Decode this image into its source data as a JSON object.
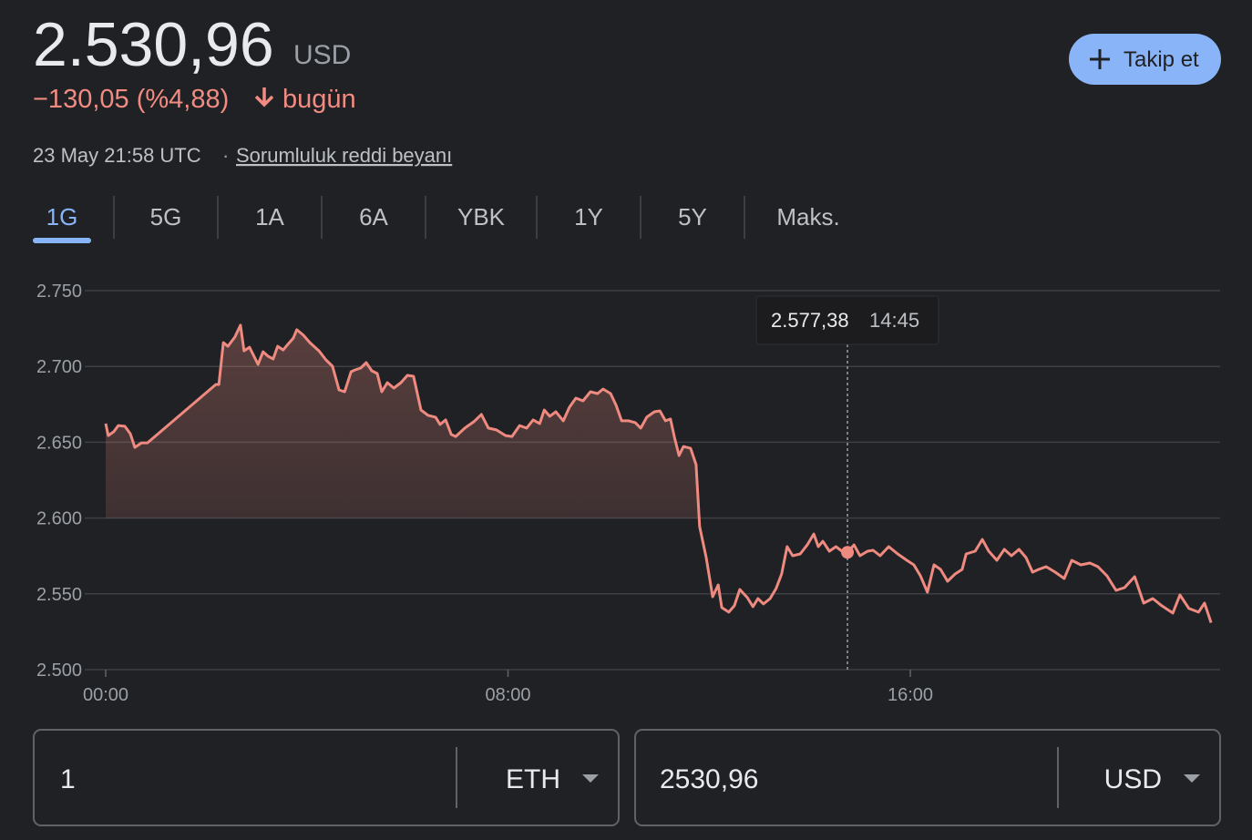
{
  "header": {
    "price": "2.530,96",
    "currency": "USD",
    "change": "−130,05 (%4,88)",
    "change_period": "bugün",
    "timestamp": "23 May 21:58 UTC",
    "separator": "·",
    "disclaimer": "Sorumluluk reddi beyanı",
    "follow_button": "Takip et"
  },
  "tabs": [
    "1G",
    "5G",
    "1A",
    "6A",
    "YBK",
    "1Y",
    "5Y",
    "Maks."
  ],
  "active_tab": 0,
  "chart_data": {
    "type": "line",
    "color": "#ee8a80",
    "grid": true,
    "xlim": [
      0,
      22.16
    ],
    "xticks": [
      {
        "value": 0,
        "label": "00:00"
      },
      {
        "value": 8,
        "label": "08:00"
      },
      {
        "value": 16,
        "label": "16:00"
      }
    ],
    "ylim": [
      2500,
      2750
    ],
    "yticks": [
      {
        "value": 2500,
        "label": "2.500"
      },
      {
        "value": 2550,
        "label": "2.550"
      },
      {
        "value": 2600,
        "label": "2.600"
      },
      {
        "value": 2650,
        "label": "2.650"
      },
      {
        "value": 2700,
        "label": "2.700"
      },
      {
        "value": 2750,
        "label": "2.750"
      }
    ],
    "x": [
      0,
      0.05,
      0.16,
      0.25,
      0.38,
      0.49,
      0.58,
      0.71,
      0.83,
      2.19,
      2.25,
      2.34,
      2.43,
      2.57,
      2.68,
      2.75,
      2.86,
      3.03,
      3.13,
      3.23,
      3.33,
      3.42,
      3.53,
      3.62,
      3.73,
      3.8,
      3.93,
      4.06,
      4.24,
      4.38,
      4.51,
      4.64,
      4.75,
      4.88,
      4.96,
      5.07,
      5.18,
      5.29,
      5.4,
      5.49,
      5.6,
      5.73,
      5.87,
      6,
      6.12,
      6.27,
      6.41,
      6.56,
      6.65,
      6.76,
      6.87,
      6.96,
      7.14,
      7.32,
      7.47,
      7.61,
      7.77,
      7.95,
      8.08,
      8.23,
      8.37,
      8.5,
      8.63,
      8.72,
      8.83,
      8.95,
      9.1,
      9.22,
      9.35,
      9.49,
      9.64,
      9.78,
      9.89,
      10.04,
      10.15,
      10.26,
      10.4,
      10.53,
      10.64,
      10.76,
      10.91,
      11.02,
      11.13,
      11.23,
      11.31,
      11.4,
      11.49,
      11.63,
      11.74,
      11.81,
      11.94,
      12.07,
      12.18,
      12.25,
      12.39,
      12.5,
      12.61,
      12.76,
      12.87,
      12.97,
      13.08,
      13.21,
      13.33,
      13.44,
      13.55,
      13.66,
      13.81,
      13.95,
      14.08,
      14.17,
      14.26,
      14.39,
      14.52,
      14.64,
      14.75,
      14.88,
      15,
      15.15,
      15.26,
      15.4,
      15.57,
      15.75,
      15.93,
      16.07,
      16.2,
      16.34,
      16.47,
      16.6,
      16.74,
      16.89,
      17.03,
      17.11,
      17.29,
      17.43,
      17.56,
      17.72,
      17.87,
      18.01,
      18.16,
      18.3,
      18.43,
      18.55,
      18.7,
      18.88,
      19.06,
      19.21,
      19.39,
      19.57,
      19.73,
      19.91,
      20.09,
      20.26,
      20.46,
      20.64,
      20.82,
      21,
      21.22,
      21.36,
      21.54,
      21.73,
      21.85,
      21.98
    ],
    "values": [
      2662.3,
      2654.4,
      2656.9,
      2661,
      2660.5,
      2655.6,
      2646.6,
      2649.6,
      2649.6,
      2688.1,
      2688.1,
      2715.7,
      2713.3,
      2719.4,
      2727.2,
      2710.3,
      2712.7,
      2701.3,
      2709.7,
      2706.7,
      2704.9,
      2713.3,
      2710.9,
      2714.5,
      2718.7,
      2724.2,
      2720.6,
      2715.7,
      2710.3,
      2704.3,
      2700.1,
      2684.5,
      2683.3,
      2696.5,
      2697.7,
      2698.9,
      2702.5,
      2697.1,
      2695.3,
      2683.3,
      2689.3,
      2685.7,
      2689.3,
      2694.1,
      2693.5,
      2671.3,
      2667.7,
      2666.5,
      2661.7,
      2664.7,
      2655.1,
      2653.8,
      2659.3,
      2663.5,
      2668.3,
      2659.3,
      2658.1,
      2654.4,
      2653.8,
      2661,
      2659.3,
      2664.7,
      2662.3,
      2671.3,
      2667.1,
      2670.1,
      2664.1,
      2673.1,
      2679.1,
      2677.3,
      2683.3,
      2682.1,
      2685.1,
      2682.1,
      2674.3,
      2664.1,
      2664.1,
      2662.9,
      2659.3,
      2666.5,
      2670.1,
      2670.7,
      2664.1,
      2665.3,
      2653.2,
      2641.2,
      2647.2,
      2646,
      2635.2,
      2594.4,
      2573.9,
      2548.1,
      2555.9,
      2540.9,
      2537.9,
      2542.1,
      2552.9,
      2547.5,
      2541.5,
      2546.9,
      2543.3,
      2546.9,
      2553.5,
      2563.1,
      2581.1,
      2575.1,
      2576.3,
      2582.3,
      2589.5,
      2581.1,
      2584.7,
      2578.1,
      2581.1,
      2578.1,
      2577.38,
      2582.3,
      2575.1,
      2578.1,
      2578.7,
      2575.1,
      2581.1,
      2576.3,
      2572.1,
      2569.1,
      2561.9,
      2551.1,
      2569.1,
      2566.1,
      2558.3,
      2563.1,
      2566.1,
      2576.3,
      2578.1,
      2585.9,
      2578.1,
      2572.1,
      2579.3,
      2575.1,
      2579.3,
      2573.9,
      2564.3,
      2566.1,
      2567.9,
      2564.3,
      2560.1,
      2572.1,
      2569.1,
      2570.3,
      2567.9,
      2561.9,
      2552.3,
      2554.1,
      2561.3,
      2543.9,
      2546.9,
      2542.1,
      2537.3,
      2549.3,
      2540.3,
      2537.9,
      2543.9,
      2530.96
    ],
    "tooltip": {
      "x": 14.75,
      "value": 2577.38,
      "label": "2.577,38",
      "time_label": "14:45"
    }
  },
  "converter": {
    "from_amount": "1",
    "from_currency": "ETH",
    "to_amount": "2530,96",
    "to_currency": "USD"
  }
}
